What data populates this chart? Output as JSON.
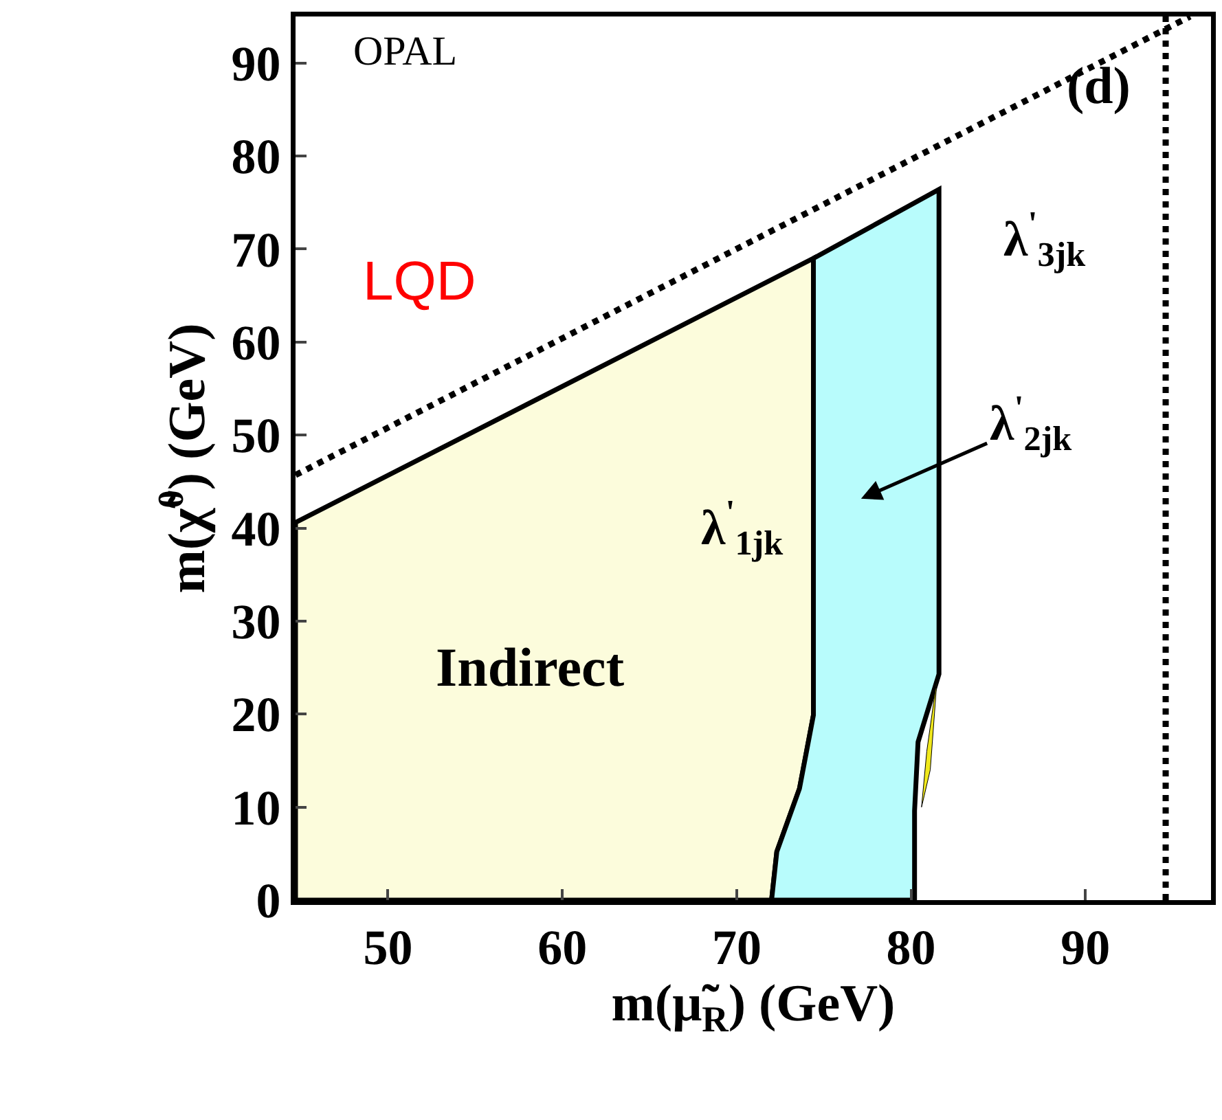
{
  "chart_data": {
    "type": "area",
    "xlabel": "m(μ̃$_{R}$) (GeV)",
    "ylabel": "m(χ̃$^{0}$) (GeV)",
    "xlim": [
      44.7,
      97.2
    ],
    "ylim": [
      0,
      95
    ],
    "xticks": [
      50,
      60,
      70,
      80,
      90
    ],
    "yticks": [
      0,
      10,
      20,
      30,
      40,
      50,
      60,
      70,
      80,
      90
    ],
    "grid": false,
    "series": [
      {
        "color": "#fcfcdc",
        "x": [
          44.7,
          44.7,
          74.4,
          74.4,
          73.6,
          72.3,
          72,
          44.7
        ],
        "values": [
          0,
          40.6,
          69,
          19.9,
          12,
          5.2,
          0,
          0
        ]
      },
      {
        "color": "#b8fcfc",
        "x": [
          74.4,
          81.6,
          81.6,
          80.4,
          80.2,
          80.2,
          72,
          72.3,
          73.6,
          74.4,
          74.4
        ],
        "values": [
          69,
          76.4,
          24.3,
          17,
          9.6,
          0,
          0,
          5.2,
          12,
          19.9,
          69
        ]
      },
      {
        "color": "#f0e81c",
        "x": [
          81.5,
          80.9,
          80.6,
          81.1,
          81.5
        ],
        "values": [
          24,
          16,
          10,
          14,
          24
        ]
      },
      {
        "type": "line",
        "color": "#000000",
        "line_style": "dotted",
        "x": [
          44.7,
          96
        ],
        "values": [
          45.7,
          95
        ]
      }
    ],
    "ref_lines": [
      {
        "axis": "x",
        "value": 94.6,
        "line_style": "dotted",
        "color": "#000000"
      }
    ],
    "annotations": [
      "OPAL",
      "LQD",
      "(d)",
      "Indirect",
      "λ$^{'}$$_{1jk}$",
      "λ$^{'}$$_{3jk}$",
      "λ$^{'}$$_{2jk}$"
    ]
  }
}
